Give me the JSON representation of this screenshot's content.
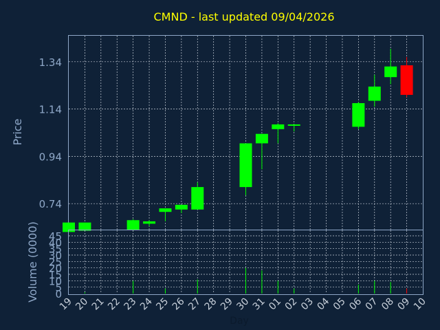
{
  "chart_data": [
    {
      "type": "candlestick",
      "title": "CMND - last updated 09/04/2026",
      "xlabel": "",
      "ylabel": "Price",
      "grid": true,
      "yticks": [
        "0.74",
        "0.94",
        "1.14",
        "1.34"
      ],
      "ylim": [
        0.63,
        1.45
      ],
      "up_color": "#00ff00",
      "down_color": "#ff0000",
      "candles": [
        {
          "x": "19",
          "open": 0.62,
          "high": 0.66,
          "low": 0.62,
          "close": 0.66
        },
        {
          "x": "20",
          "open": 0.625,
          "high": 0.66,
          "low": 0.625,
          "close": 0.66
        },
        {
          "x": "23",
          "open": 0.63,
          "high": 0.675,
          "low": 0.625,
          "close": 0.67
        },
        {
          "x": "24",
          "open": 0.655,
          "high": 0.67,
          "low": 0.645,
          "close": 0.665
        },
        {
          "x": "25",
          "open": 0.705,
          "high": 0.72,
          "low": 0.665,
          "close": 0.72
        },
        {
          "x": "26",
          "open": 0.715,
          "high": 0.735,
          "low": 0.7,
          "close": 0.735
        },
        {
          "x": "27",
          "open": 0.715,
          "high": 0.83,
          "low": 0.715,
          "close": 0.81
        },
        {
          "x": "30",
          "open": 0.81,
          "high": 0.995,
          "low": 0.775,
          "close": 0.995
        },
        {
          "x": "31",
          "open": 0.995,
          "high": 1.035,
          "low": 0.885,
          "close": 1.035
        },
        {
          "x": "01",
          "open": 1.055,
          "high": 1.08,
          "low": 0.995,
          "close": 1.075
        },
        {
          "x": "02",
          "open": 1.07,
          "high": 1.075,
          "low": 1.045,
          "close": 1.075
        },
        {
          "x": "06",
          "open": 1.065,
          "high": 1.17,
          "low": 1.055,
          "close": 1.165
        },
        {
          "x": "07",
          "open": 1.175,
          "high": 1.285,
          "low": 1.15,
          "close": 1.235
        },
        {
          "x": "08",
          "open": 1.275,
          "high": 1.395,
          "low": 1.245,
          "close": 1.32
        },
        {
          "x": "09",
          "open": 1.325,
          "high": 1.36,
          "low": 1.19,
          "close": 1.2
        }
      ]
    },
    {
      "type": "bar",
      "xlabel": "Day",
      "ylabel": "Volume (0000)",
      "grid": true,
      "yticks": [
        "0",
        "5",
        "10",
        "15",
        "20",
        "25",
        "30",
        "35",
        "40",
        "45"
      ],
      "ylim": [
        0,
        45
      ],
      "categories": [
        "19",
        "20",
        "21",
        "22",
        "23",
        "24",
        "25",
        "26",
        "27",
        "28",
        "29",
        "30",
        "31",
        "01",
        "02",
        "03",
        "04",
        "05",
        "06",
        "07",
        "08",
        "09",
        "10"
      ],
      "values": [
        0,
        1,
        0,
        0,
        10,
        0,
        4,
        0,
        11,
        0,
        0,
        20,
        18,
        10,
        4,
        0,
        0,
        0,
        7,
        10,
        9,
        4,
        0
      ],
      "colors": [
        "#00ff00",
        "#00ff00",
        "#00ff00",
        "#00ff00",
        "#00ff00",
        "#00ff00",
        "#00ff00",
        "#00ff00",
        "#00ff00",
        "#00ff00",
        "#00ff00",
        "#00ff00",
        "#00ff00",
        "#00ff00",
        "#00ff00",
        "#00ff00",
        "#00ff00",
        "#00ff00",
        "#00ff00",
        "#00ff00",
        "#00ff00",
        "#ff0000",
        "#00ff00"
      ]
    }
  ],
  "colors": {
    "background": "#0f2137",
    "plot_border": "#8fa8c8",
    "grid": "#c8d0da",
    "title": "#ffff00",
    "axis_text": "#8fa8c8",
    "x_text": "#c8d0da"
  }
}
